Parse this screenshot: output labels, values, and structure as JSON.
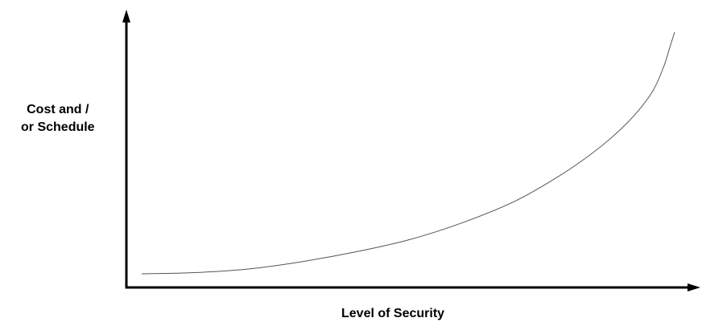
{
  "chart_data": {
    "type": "line",
    "title": "",
    "xlabel": "Level of Security",
    "ylabel_lines": [
      "Cost and /",
      "or Schedule"
    ],
    "x_ticks": [],
    "y_ticks": [],
    "grid": false,
    "legend": "none",
    "colors": {
      "axis": "#000000",
      "curve": "#555555"
    },
    "series": [
      {
        "values_note": "",
        "points": [
          [
            0.0,
            0.0
          ],
          [
            0.1,
            0.005
          ],
          [
            0.2,
            0.02
          ],
          [
            0.3,
            0.05
          ],
          [
            0.4,
            0.09
          ],
          [
            0.5,
            0.14
          ],
          [
            0.6,
            0.21
          ],
          [
            0.7,
            0.3
          ],
          [
            0.78,
            0.4
          ],
          [
            0.84,
            0.49
          ],
          [
            0.89,
            0.58
          ],
          [
            0.93,
            0.67
          ],
          [
            0.96,
            0.76
          ],
          [
            0.98,
            0.86
          ],
          [
            0.99,
            0.93
          ],
          [
            1.0,
            1.0
          ]
        ]
      }
    ],
    "xlim": [
      0,
      1
    ],
    "ylim": [
      0,
      1
    ]
  }
}
